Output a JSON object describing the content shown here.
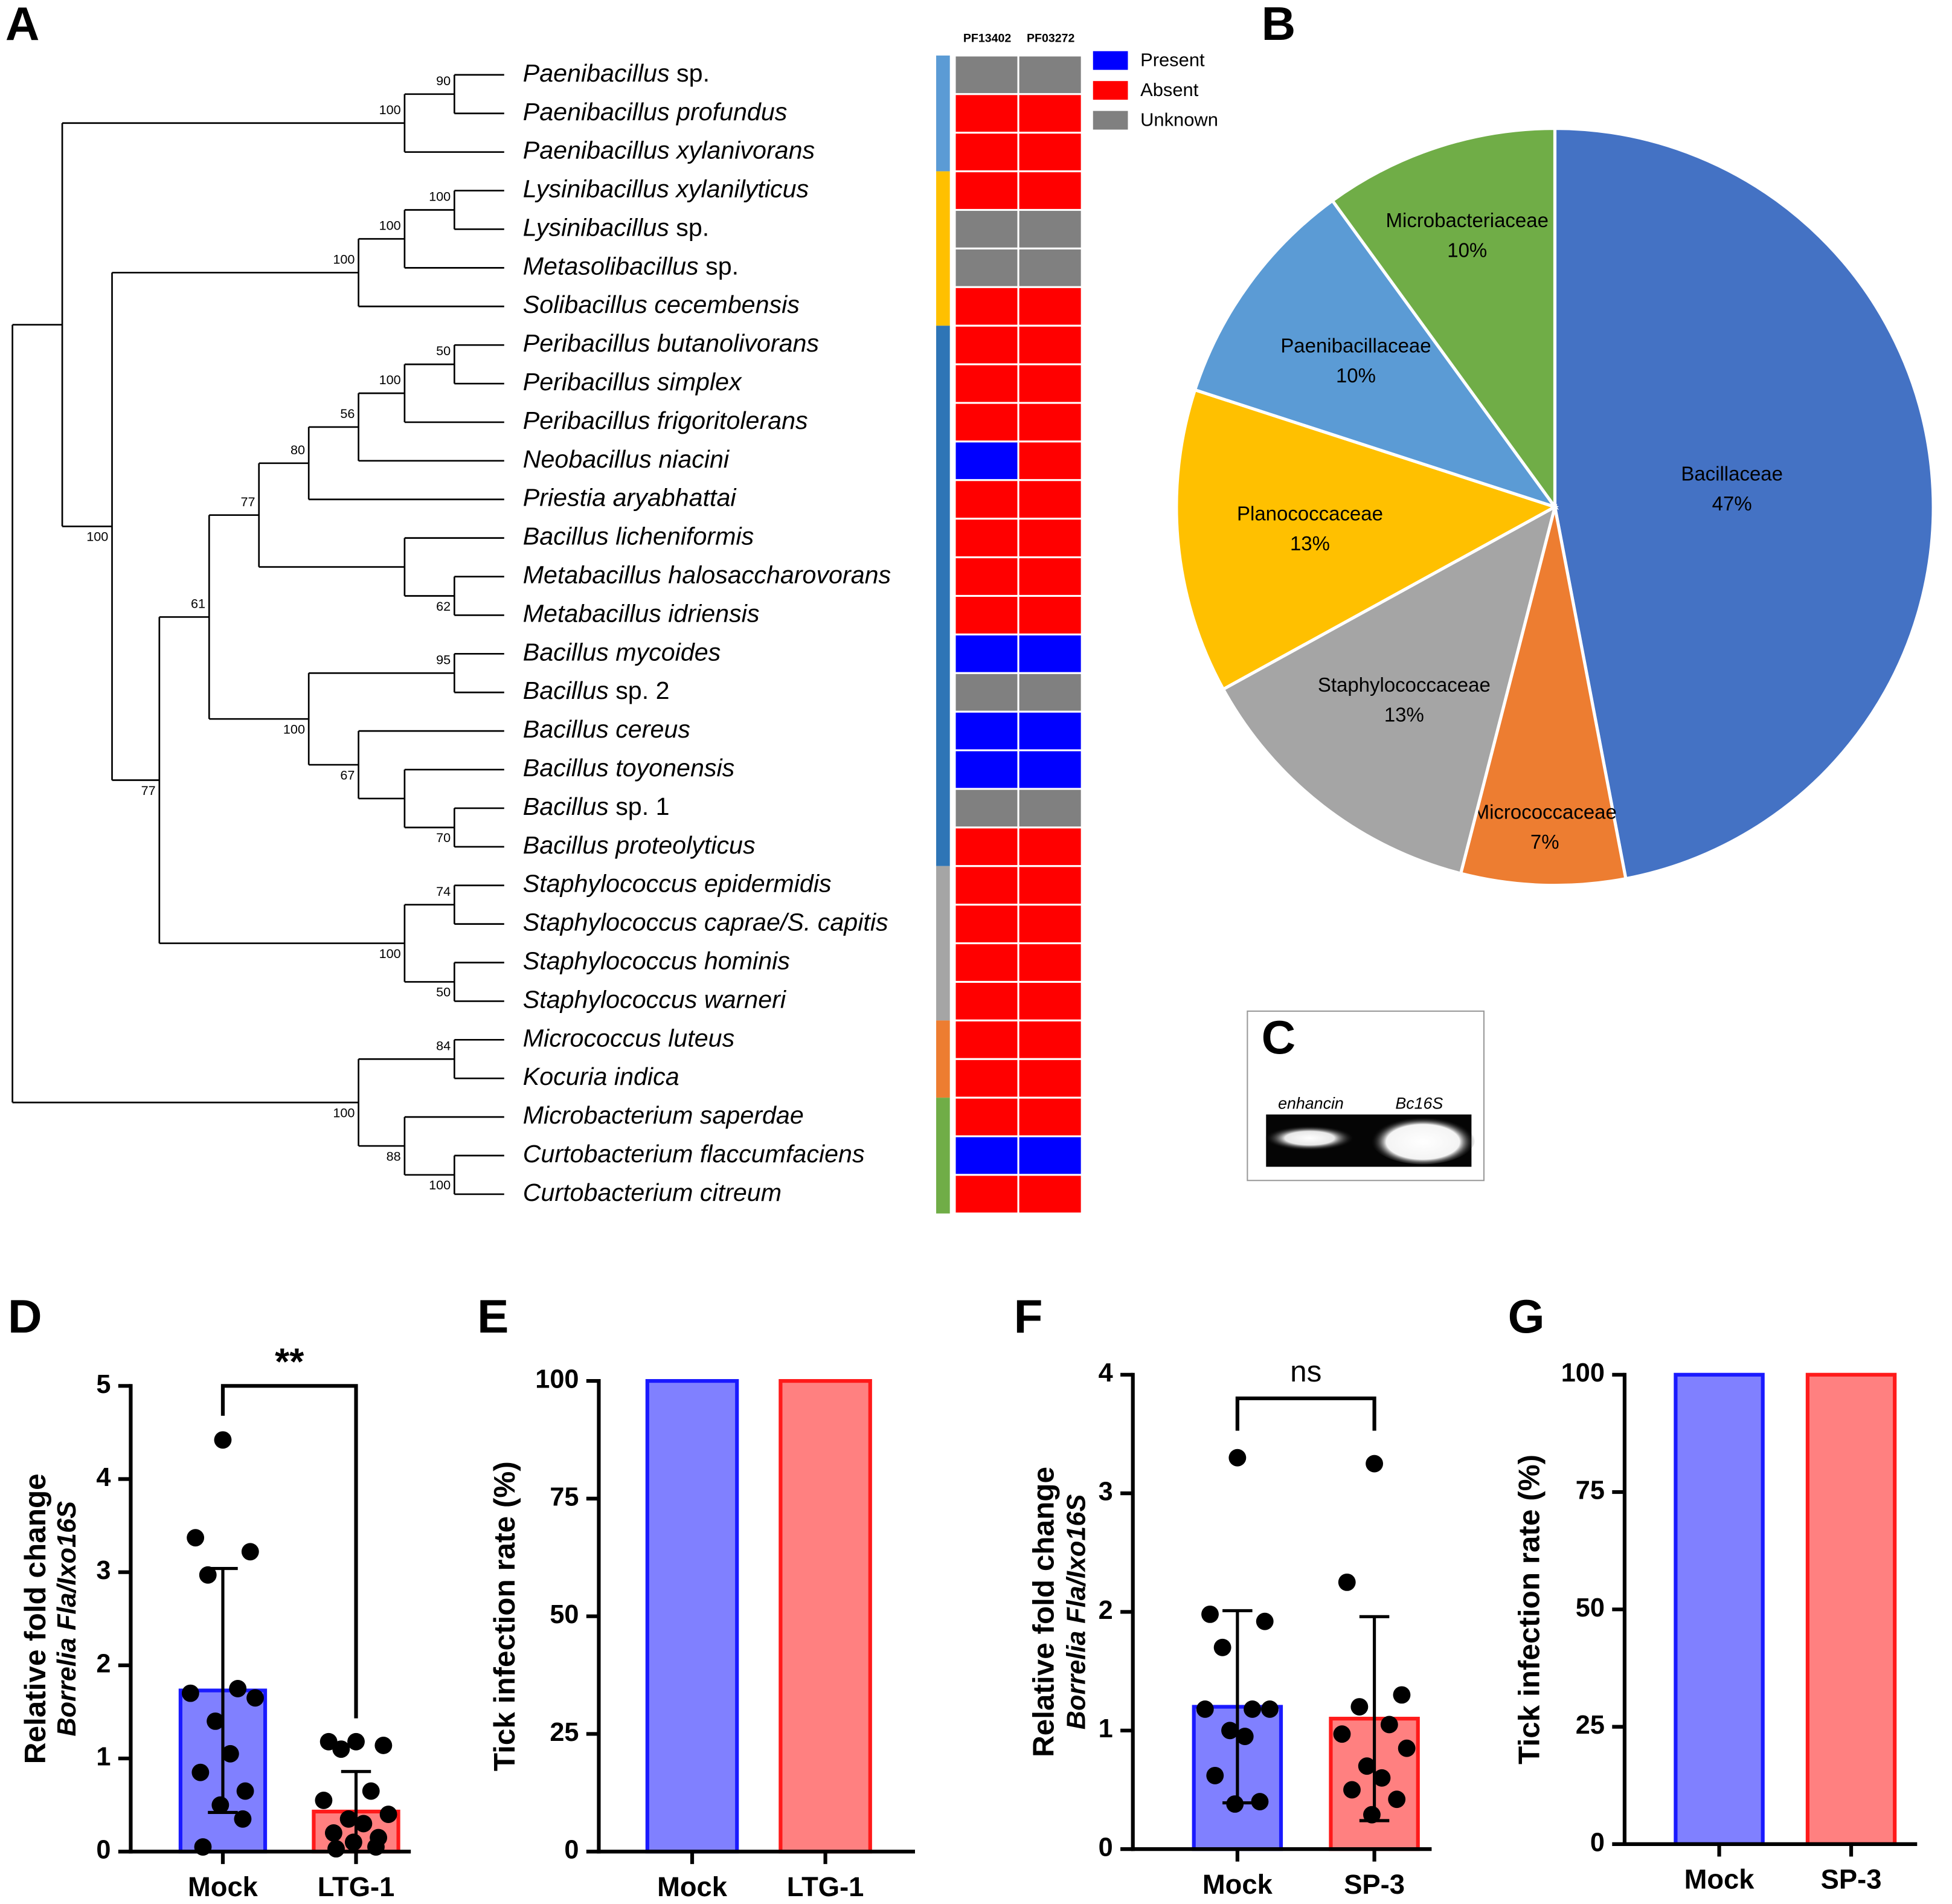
{
  "tree": {
    "panel": "A",
    "species": [
      "Paenibacillus sp.",
      "Paenibacillus profundus",
      "Paenibacillus xylanivorans",
      "Lysinibacillus xylanilyticus",
      "Lysinibacillus sp.",
      "Metasolibacillus sp.",
      "Solibacillus cecembensis",
      "Peribacillus butanolivorans",
      "Peribacillus simplex",
      "Peribacillus frigoritolerans",
      "Neobacillus niacini",
      "Priestia aryabhattai",
      "Bacillus licheniformis",
      "Metabacillus halosaccharovorans",
      "Metabacillus idriensis",
      "Bacillus mycoides",
      "Bacillus sp. 2",
      "Bacillus cereus",
      "Bacillus toyonensis",
      "Bacillus sp. 1",
      "Bacillus proteolyticus",
      "Staphylococcus epidermidis",
      "Staphylococcus caprae/S. capitis",
      "Staphylococcus hominis",
      "Staphylococcus warneri",
      "Micrococcus luteus",
      "Kocuria indica",
      "Microbacterium saperdae",
      "Curtobacterium flaccumfaciens",
      "Curtobacterium citreum"
    ],
    "bootstrap": [
      90,
      100,
      100,
      100,
      100,
      50,
      100,
      56,
      80,
      62,
      77,
      95,
      70,
      67,
      100,
      61,
      74,
      50,
      100,
      77,
      100,
      84,
      100,
      88,
      100
    ],
    "heatmap": {
      "columns": [
        "PF13402",
        "PF03272"
      ],
      "values": [
        [
          "Unknown",
          "Unknown"
        ],
        [
          "Absent",
          "Absent"
        ],
        [
          "Absent",
          "Absent"
        ],
        [
          "Absent",
          "Absent"
        ],
        [
          "Unknown",
          "Unknown"
        ],
        [
          "Unknown",
          "Unknown"
        ],
        [
          "Absent",
          "Absent"
        ],
        [
          "Absent",
          "Absent"
        ],
        [
          "Absent",
          "Absent"
        ],
        [
          "Absent",
          "Absent"
        ],
        [
          "Present",
          "Absent"
        ],
        [
          "Absent",
          "Absent"
        ],
        [
          "Absent",
          "Absent"
        ],
        [
          "Absent",
          "Absent"
        ],
        [
          "Absent",
          "Absent"
        ],
        [
          "Present",
          "Present"
        ],
        [
          "Unknown",
          "Unknown"
        ],
        [
          "Present",
          "Present"
        ],
        [
          "Present",
          "Present"
        ],
        [
          "Unknown",
          "Unknown"
        ],
        [
          "Absent",
          "Absent"
        ],
        [
          "Absent",
          "Absent"
        ],
        [
          "Absent",
          "Absent"
        ],
        [
          "Absent",
          "Absent"
        ],
        [
          "Absent",
          "Absent"
        ],
        [
          "Absent",
          "Absent"
        ],
        [
          "Absent",
          "Absent"
        ],
        [
          "Absent",
          "Absent"
        ],
        [
          "Present",
          "Present"
        ],
        [
          "Absent",
          "Absent"
        ]
      ],
      "legend": [
        {
          "name": "Present",
          "color": "#0000ff"
        },
        {
          "name": "Absent",
          "color": "#ff0000"
        },
        {
          "name": "Unknown",
          "color": "#808080"
        }
      ]
    }
  },
  "gel": {
    "panel": "C",
    "lanes": [
      "enhancin",
      "Bc16S"
    ]
  },
  "chart_data": [
    {
      "type": "pie",
      "panel": "B",
      "categories": [
        "Bacillaceae",
        "Micrococcaceae",
        "Staphylococcaceae",
        "Planococcaceae",
        "Paenibacillaceae",
        "Microbacteriaceae"
      ],
      "values": [
        47,
        7,
        13,
        13,
        10,
        10
      ],
      "value_labels": [
        "47%",
        "7%",
        "13%",
        "13%",
        "10%",
        "10%"
      ],
      "colors": [
        "#4472c4",
        "#ed7d31",
        "#a5a5a5",
        "#ffc000",
        "#5b9bd5",
        "#70ad47"
      ]
    },
    {
      "type": "bar",
      "panel": "D",
      "ylabel": "Relative fold change",
      "ylabel2": "Borrelia Fla/Ixo16S",
      "categories": [
        "Mock",
        "LTG-1"
      ],
      "values": [
        1.73,
        0.43
      ],
      "errors": [
        1.31,
        0.43
      ],
      "points": [
        [
          4.42,
          3.37,
          3.22,
          2.97,
          1.75,
          1.7,
          1.65,
          1.4,
          1.05,
          0.85,
          0.65,
          0.5,
          0.35,
          0.05
        ],
        [
          1.18,
          1.18,
          1.14,
          1.1,
          0.65,
          0.55,
          0.4,
          0.35,
          0.3,
          0.2,
          0.15,
          0.1,
          0.05,
          0.03
        ]
      ],
      "colors": [
        "#8080ff",
        "#ff8080"
      ],
      "edgecolors": [
        "#1a1aff",
        "#ff1a1a"
      ],
      "ylim": [
        0,
        5
      ],
      "yticks": [
        0,
        1,
        2,
        3,
        4,
        5
      ],
      "annotation": "**"
    },
    {
      "type": "bar",
      "panel": "E",
      "ylabel": "Tick infection rate (%)",
      "categories": [
        "Mock",
        "LTG-1"
      ],
      "values": [
        100,
        100
      ],
      "colors": [
        "#8080ff",
        "#ff8080"
      ],
      "edgecolors": [
        "#1a1aff",
        "#ff1a1a"
      ],
      "ylim": [
        0,
        100
      ],
      "yticks": [
        0,
        25,
        50,
        75,
        100
      ]
    },
    {
      "type": "bar",
      "panel": "F",
      "ylabel": "Relative fold change",
      "ylabel2": "Borrelia Fla/Ixo16S",
      "categories": [
        "Mock",
        "SP-3"
      ],
      "values": [
        1.2,
        1.1
      ],
      "errors": [
        0.81,
        0.86
      ],
      "points": [
        [
          3.3,
          1.98,
          1.92,
          1.7,
          1.18,
          1.18,
          1.18,
          1.0,
          0.95,
          0.62,
          0.4,
          0.38
        ],
        [
          3.25,
          2.25,
          1.3,
          1.2,
          1.05,
          0.97,
          0.85,
          0.7,
          0.6,
          0.5,
          0.42,
          0.29
        ]
      ],
      "colors": [
        "#8080ff",
        "#ff8080"
      ],
      "edgecolors": [
        "#1a1aff",
        "#ff1a1a"
      ],
      "ylim": [
        0,
        4
      ],
      "yticks": [
        0,
        1,
        2,
        3,
        4
      ],
      "annotation": "ns"
    },
    {
      "type": "bar",
      "panel": "G",
      "ylabel": "Tick infection rate (%)",
      "categories": [
        "Mock",
        "SP-3"
      ],
      "values": [
        100,
        100
      ],
      "colors": [
        "#8080ff",
        "#ff8080"
      ],
      "edgecolors": [
        "#1a1aff",
        "#ff1a1a"
      ],
      "ylim": [
        0,
        100
      ],
      "yticks": [
        0,
        25,
        50,
        75,
        100
      ]
    }
  ]
}
